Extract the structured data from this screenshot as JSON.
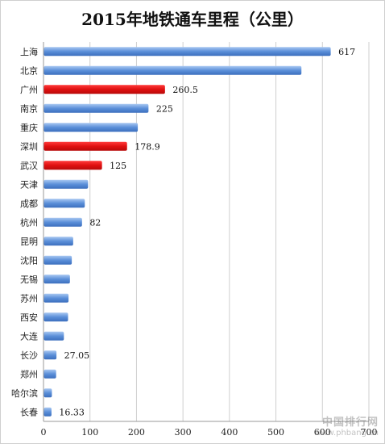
{
  "chart_data": {
    "type": "bar",
    "orientation": "horizontal",
    "title": "2015年地铁通车里程（公里）",
    "categories": [
      "上海",
      "北京",
      "广州",
      "南京",
      "重庆",
      "深圳",
      "武汉",
      "天津",
      "成都",
      "杭州",
      "昆明",
      "沈阳",
      "无锡",
      "苏州",
      "西安",
      "大连",
      "长沙",
      "郑州",
      "哈尔滨",
      "长春"
    ],
    "values": [
      617,
      554,
      260.5,
      225,
      202,
      178.9,
      125,
      95,
      88,
      82,
      63,
      60,
      56,
      53,
      52,
      43,
      27.05,
      26.3,
      17.2,
      16.33
    ],
    "data_labels": [
      "617",
      "",
      "260.5",
      "225",
      "",
      "178.9",
      "125",
      "",
      "",
      "82",
      "",
      "",
      "",
      "",
      "",
      "",
      "27.05",
      "",
      "",
      "16.33"
    ],
    "highlighted": [
      "广州",
      "深圳",
      "武汉"
    ],
    "colors": {
      "default": "#5b8fd9",
      "highlight": "#e01010"
    },
    "xlim": [
      0,
      700
    ],
    "xticks": [
      0,
      100,
      200,
      300,
      400,
      500,
      600,
      700
    ],
    "grid": true,
    "xlabel": "",
    "ylabel": ""
  },
  "watermark": {
    "main": "中国排行网",
    "url": "www.phbang.cn"
  }
}
